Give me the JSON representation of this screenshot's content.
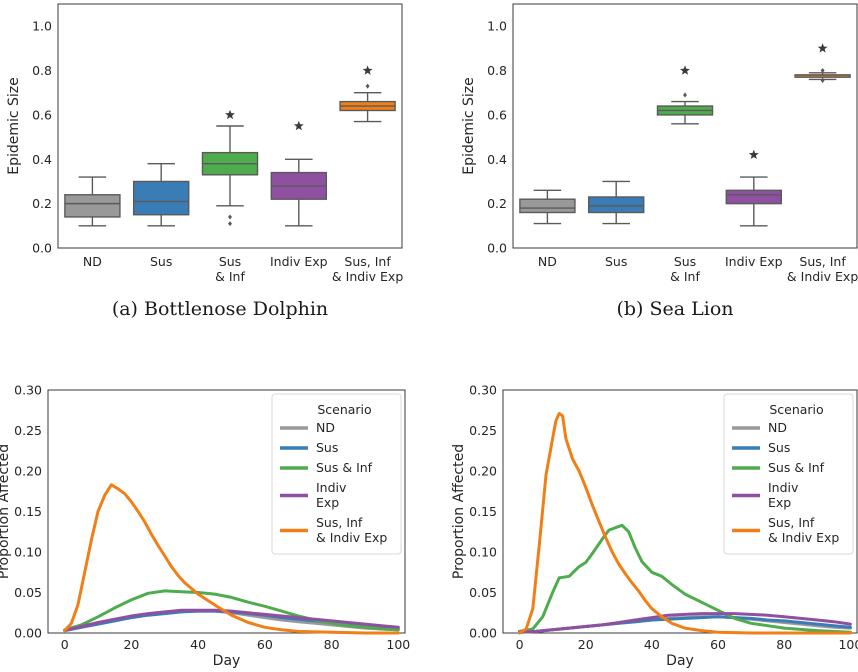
{
  "chart_data": [
    {
      "type": "box",
      "caption": "(a) Bottlenose Dolphin",
      "ylabel": "Epidemic Size",
      "ylim": [
        0,
        1.1
      ],
      "yticks": [
        0.0,
        0.2,
        0.4,
        0.6,
        0.8,
        1.0
      ],
      "grid": false,
      "categories": [
        "ND",
        "Sus",
        "Sus\n& Inf",
        "Indiv Exp",
        "Sus, Inf\n& Indiv Exp"
      ],
      "colors": [
        "#999999",
        "#3a7cb5",
        "#4eac4e",
        "#9050a2",
        "#f07f17"
      ],
      "boxes": [
        {
          "whislo": 0.1,
          "q1": 0.14,
          "med": 0.2,
          "q3": 0.24,
          "whishi": 0.32,
          "fliers": [],
          "star": null
        },
        {
          "whislo": 0.1,
          "q1": 0.15,
          "med": 0.21,
          "q3": 0.3,
          "whishi": 0.38,
          "fliers": [],
          "star": null
        },
        {
          "whislo": 0.19,
          "q1": 0.33,
          "med": 0.38,
          "q3": 0.43,
          "whishi": 0.55,
          "fliers": [
            0.14,
            0.11
          ],
          "star": 0.6
        },
        {
          "whislo": 0.1,
          "q1": 0.22,
          "med": 0.28,
          "q3": 0.34,
          "whishi": 0.4,
          "fliers": [],
          "star": 0.55
        },
        {
          "whislo": 0.57,
          "q1": 0.62,
          "med": 0.64,
          "q3": 0.66,
          "whishi": 0.7,
          "fliers": [
            0.73
          ],
          "star": 0.8
        }
      ]
    },
    {
      "type": "box",
      "caption": "(b) Sea Lion",
      "ylabel": "Epidemic Size",
      "ylim": [
        0,
        1.1
      ],
      "yticks": [
        0.0,
        0.2,
        0.4,
        0.6,
        0.8,
        1.0
      ],
      "grid": false,
      "categories": [
        "ND",
        "Sus",
        "Sus\n& Inf",
        "Indiv Exp",
        "Sus, Inf\n& Indiv Exp"
      ],
      "colors": [
        "#999999",
        "#3a7cb5",
        "#4eac4e",
        "#9050a2",
        "#f07f17"
      ],
      "boxes": [
        {
          "whislo": 0.11,
          "q1": 0.16,
          "med": 0.18,
          "q3": 0.22,
          "whishi": 0.26,
          "fliers": [],
          "star": null
        },
        {
          "whislo": 0.11,
          "q1": 0.16,
          "med": 0.19,
          "q3": 0.23,
          "whishi": 0.3,
          "fliers": [],
          "star": null
        },
        {
          "whislo": 0.56,
          "q1": 0.6,
          "med": 0.62,
          "q3": 0.64,
          "whishi": 0.66,
          "fliers": [
            0.69
          ],
          "star": 0.8
        },
        {
          "whislo": 0.1,
          "q1": 0.2,
          "med": 0.24,
          "q3": 0.26,
          "whishi": 0.32,
          "fliers": [],
          "star": 0.42
        },
        {
          "whislo": 0.76,
          "q1": 0.77,
          "med": 0.78,
          "q3": 0.78,
          "whishi": 0.79,
          "fliers": [
            0.755,
            0.8
          ],
          "star": 0.9
        }
      ]
    },
    {
      "type": "line",
      "xlabel": "Day",
      "ylabel": "Proportion Affected",
      "xlim": [
        -5,
        102
      ],
      "ylim": [
        0,
        0.3
      ],
      "xticks": [
        0,
        20,
        40,
        60,
        80,
        100
      ],
      "yticks": [
        0.0,
        0.05,
        0.1,
        0.15,
        0.2,
        0.25,
        0.3
      ],
      "grid": false,
      "legend": {
        "title": "Scenario",
        "position": "top-right"
      },
      "series": [
        {
          "name": "ND",
          "color": "#999999",
          "x": [
            0,
            5,
            10,
            15,
            20,
            25,
            30,
            35,
            40,
            45,
            50,
            55,
            60,
            65,
            70,
            75,
            80,
            85,
            90,
            95,
            100
          ],
          "y": [
            0.003,
            0.008,
            0.012,
            0.016,
            0.02,
            0.023,
            0.025,
            0.027,
            0.027,
            0.027,
            0.025,
            0.022,
            0.019,
            0.016,
            0.014,
            0.012,
            0.01,
            0.008,
            0.006,
            0.005,
            0.004
          ]
        },
        {
          "name": "Sus",
          "color": "#3a7cb5",
          "x": [
            0,
            5,
            10,
            15,
            20,
            25,
            30,
            35,
            40,
            45,
            50,
            55,
            60,
            65,
            70,
            75,
            80,
            85,
            90,
            95,
            100
          ],
          "y": [
            0.003,
            0.007,
            0.011,
            0.015,
            0.019,
            0.022,
            0.024,
            0.026,
            0.027,
            0.027,
            0.026,
            0.024,
            0.022,
            0.019,
            0.017,
            0.015,
            0.013,
            0.011,
            0.009,
            0.007,
            0.006
          ]
        },
        {
          "name": "Sus & Inf",
          "color": "#4eac4e",
          "x": [
            0,
            5,
            10,
            15,
            20,
            25,
            30,
            35,
            40,
            45,
            50,
            55,
            60,
            65,
            70,
            75,
            80,
            85,
            90,
            95,
            100
          ],
          "y": [
            0.004,
            0.01,
            0.02,
            0.031,
            0.041,
            0.049,
            0.052,
            0.051,
            0.05,
            0.048,
            0.044,
            0.038,
            0.033,
            0.027,
            0.021,
            0.016,
            0.012,
            0.009,
            0.007,
            0.005,
            0.004
          ]
        },
        {
          "name": "Indiv\nExp",
          "color": "#9050a2",
          "x": [
            0,
            5,
            10,
            15,
            20,
            25,
            30,
            35,
            40,
            45,
            50,
            55,
            60,
            65,
            70,
            75,
            80,
            85,
            90,
            95,
            100
          ],
          "y": [
            0.003,
            0.008,
            0.013,
            0.017,
            0.021,
            0.024,
            0.026,
            0.028,
            0.028,
            0.028,
            0.027,
            0.025,
            0.023,
            0.021,
            0.019,
            0.017,
            0.015,
            0.013,
            0.011,
            0.009,
            0.007
          ]
        },
        {
          "name": "Sus, Inf\n& Indiv Exp",
          "color": "#f07f17",
          "x": [
            0,
            2,
            4,
            6,
            8,
            10,
            12,
            14,
            16,
            18,
            20,
            22,
            24,
            26,
            28,
            30,
            32,
            34,
            36,
            38,
            40,
            43,
            46,
            50,
            55,
            60,
            65,
            70,
            80,
            90,
            100
          ],
          "y": [
            0.003,
            0.012,
            0.035,
            0.075,
            0.115,
            0.15,
            0.17,
            0.183,
            0.178,
            0.172,
            0.162,
            0.15,
            0.137,
            0.122,
            0.108,
            0.095,
            0.082,
            0.071,
            0.062,
            0.055,
            0.048,
            0.04,
            0.032,
            0.022,
            0.013,
            0.007,
            0.004,
            0.002,
            0.001,
            0.0,
            0.0
          ]
        }
      ]
    },
    {
      "type": "line",
      "xlabel": "Day",
      "ylabel": "Proportion Affected",
      "xlim": [
        -5,
        102
      ],
      "ylim": [
        0,
        0.3
      ],
      "xticks": [
        0,
        20,
        40,
        60,
        80,
        100
      ],
      "yticks": [
        0.0,
        0.05,
        0.1,
        0.15,
        0.2,
        0.25,
        0.3
      ],
      "grid": false,
      "legend": {
        "title": "Scenario",
        "position": "top-right"
      },
      "series": [
        {
          "name": "ND",
          "color": "#999999",
          "x": [
            0,
            5,
            10,
            15,
            20,
            25,
            30,
            35,
            40,
            45,
            50,
            55,
            60,
            65,
            70,
            75,
            80,
            85,
            90,
            95,
            100
          ],
          "y": [
            0.001,
            0.002,
            0.004,
            0.006,
            0.008,
            0.01,
            0.012,
            0.014,
            0.016,
            0.018,
            0.019,
            0.02,
            0.02,
            0.019,
            0.017,
            0.015,
            0.013,
            0.011,
            0.009,
            0.007,
            0.006
          ]
        },
        {
          "name": "Sus",
          "color": "#3a7cb5",
          "x": [
            0,
            5,
            10,
            15,
            20,
            25,
            30,
            35,
            40,
            45,
            50,
            55,
            60,
            65,
            70,
            75,
            80,
            85,
            90,
            95,
            100
          ],
          "y": [
            0.001,
            0.002,
            0.004,
            0.006,
            0.008,
            0.01,
            0.012,
            0.014,
            0.016,
            0.017,
            0.018,
            0.019,
            0.02,
            0.019,
            0.018,
            0.016,
            0.015,
            0.013,
            0.011,
            0.009,
            0.007
          ]
        },
        {
          "name": "Sus & Inf",
          "color": "#4eac4e",
          "x": [
            0,
            4,
            7,
            10,
            12,
            15,
            18,
            20,
            22,
            25,
            27,
            29,
            31,
            33,
            35,
            37,
            40,
            43,
            46,
            50,
            55,
            60,
            65,
            70,
            75,
            80,
            90,
            100
          ],
          "y": [
            0.002,
            0.005,
            0.02,
            0.05,
            0.068,
            0.07,
            0.082,
            0.087,
            0.098,
            0.116,
            0.127,
            0.13,
            0.133,
            0.125,
            0.105,
            0.088,
            0.075,
            0.07,
            0.06,
            0.048,
            0.038,
            0.028,
            0.018,
            0.012,
            0.009,
            0.006,
            0.003,
            0.001
          ]
        },
        {
          "name": "Indiv\nExp",
          "color": "#9050a2",
          "x": [
            0,
            5,
            10,
            15,
            20,
            25,
            30,
            35,
            40,
            45,
            50,
            55,
            60,
            65,
            70,
            75,
            80,
            85,
            90,
            95,
            100
          ],
          "y": [
            0.001,
            0.002,
            0.004,
            0.006,
            0.008,
            0.01,
            0.013,
            0.016,
            0.019,
            0.022,
            0.023,
            0.024,
            0.024,
            0.024,
            0.023,
            0.022,
            0.02,
            0.018,
            0.016,
            0.014,
            0.011
          ]
        },
        {
          "name": "Sus, Inf\n& Indiv Exp",
          "color": "#f07f17",
          "x": [
            0,
            2,
            4,
            6,
            8,
            10,
            11,
            12,
            13,
            14,
            16,
            18,
            20,
            22,
            24,
            26,
            28,
            30,
            32,
            34,
            36,
            38,
            40,
            43,
            46,
            50,
            55,
            60,
            70,
            80,
            100
          ],
          "y": [
            0.0,
            0.005,
            0.03,
            0.11,
            0.195,
            0.24,
            0.262,
            0.271,
            0.268,
            0.24,
            0.215,
            0.2,
            0.18,
            0.158,
            0.138,
            0.118,
            0.1,
            0.085,
            0.073,
            0.062,
            0.052,
            0.04,
            0.03,
            0.02,
            0.012,
            0.006,
            0.003,
            0.001,
            0.0,
            0.0,
            0.0
          ]
        }
      ]
    }
  ]
}
